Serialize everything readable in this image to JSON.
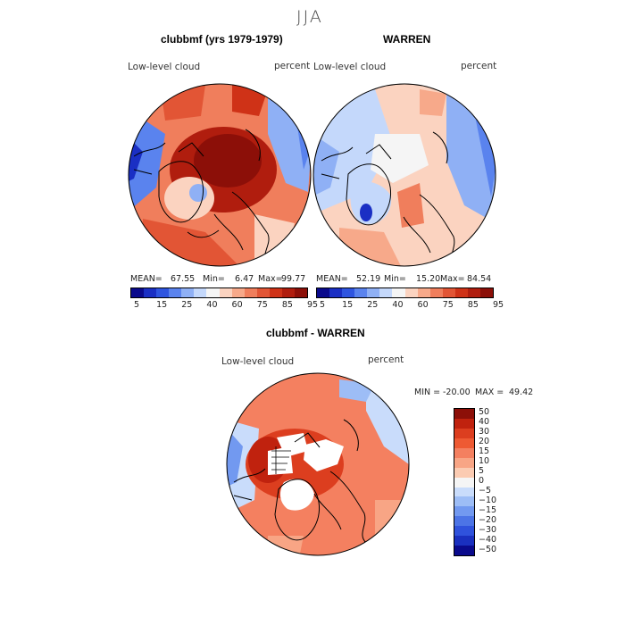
{
  "figure": {
    "season": "JJA"
  },
  "panels": [
    {
      "title": "clubbmf (yrs 1979-1979)",
      "variable": "Low-level cloud",
      "units": "percent",
      "stats": {
        "mean_label": "MEAN=",
        "mean": "67.55",
        "min_label": "Min=",
        "min": "6.47",
        "max_label": "Max=",
        "max": "99.77"
      }
    },
    {
      "title": "WARREN",
      "variable": "Low-level cloud",
      "units": "percent",
      "stats": {
        "mean_label": "MEAN=",
        "mean": "52.19",
        "min_label": "Min=",
        "min": "15.20",
        "max_label": "Max=",
        "max": "84.54"
      }
    },
    {
      "title": "clubbmf - WARREN",
      "variable": "Low-level cloud",
      "units": "percent",
      "stats": {
        "min_label": "MIN =",
        "min": "-20.00",
        "max_label": "MAX =",
        "max": "49.42"
      }
    }
  ],
  "colorbar_top": {
    "ticks": [
      "5",
      "15",
      "25",
      "40",
      "60",
      "75",
      "85",
      "95"
    ],
    "colors": [
      "#0a0a8c",
      "#1a2fc4",
      "#2f55e0",
      "#5a83ee",
      "#8fb0f5",
      "#c4d8fb",
      "#f5f5f5",
      "#fbd3c0",
      "#f7a98a",
      "#f07e5c",
      "#e25535",
      "#cf3217",
      "#b01d0e",
      "#8c0f08"
    ]
  },
  "colorbar_diff": {
    "labels": [
      "50",
      "40",
      "30",
      "20",
      "15",
      "10",
      "5",
      "0",
      "−5",
      "−10",
      "−15",
      "−20",
      "−30",
      "−40",
      "−50"
    ],
    "colors": [
      "#8c0f08",
      "#c0220e",
      "#dc3e1f",
      "#ee5a33",
      "#f48060",
      "#f8a585",
      "#fbcbb2",
      "#f5f5f5",
      "#c9dcfb",
      "#9dbdf6",
      "#7299f0",
      "#4c74e6",
      "#2f52dc",
      "#1a30bf",
      "#0a0a8c"
    ]
  }
}
